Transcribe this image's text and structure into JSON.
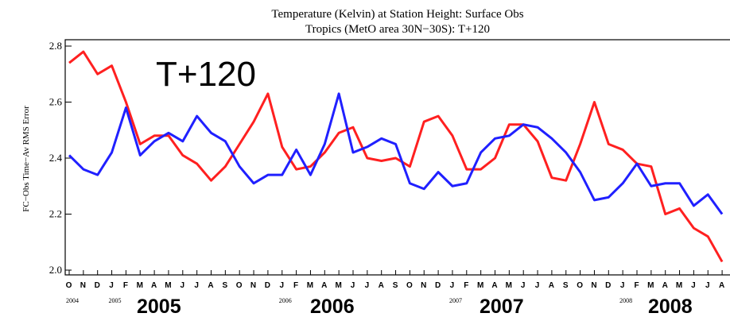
{
  "chart_data": {
    "type": "line",
    "title": "Temperature (Kelvin) at Station Height:  Surface Obs",
    "subtitle": "Tropics (MetO area 30N−30S): T+120",
    "y_label": "FC−Obs Time−Av RMS Error",
    "annotation": "T+120",
    "categories": [
      "O",
      "N",
      "D",
      "J",
      "F",
      "M",
      "A",
      "M",
      "J",
      "J",
      "A",
      "S",
      "O",
      "N",
      "D",
      "J",
      "F",
      "M",
      "A",
      "M",
      "J",
      "J",
      "A",
      "S",
      "O",
      "N",
      "D",
      "J",
      "F",
      "M",
      "A",
      "M",
      "J",
      "J",
      "A",
      "S",
      "O",
      "N",
      "D",
      "J",
      "F",
      "M",
      "A",
      "M",
      "J",
      "J",
      "A"
    ],
    "year_labels": [
      "2004",
      null,
      null,
      "2005",
      null,
      null,
      null,
      null,
      null,
      null,
      null,
      null,
      null,
      null,
      null,
      "2006",
      null,
      null,
      null,
      null,
      null,
      null,
      null,
      null,
      null,
      null,
      null,
      "2007",
      null,
      null,
      null,
      null,
      null,
      null,
      null,
      null,
      null,
      null,
      null,
      "2008",
      null,
      null,
      null,
      null,
      null,
      null,
      null
    ],
    "big_year_labels": [
      "2005",
      "2006",
      "2007",
      "2008"
    ],
    "series": [
      {
        "name": "red",
        "color": "#ff2020",
        "values": [
          2.74,
          2.78,
          2.7,
          2.73,
          2.6,
          2.45,
          2.48,
          2.48,
          2.41,
          2.38,
          2.32,
          2.37,
          2.45,
          2.53,
          2.63,
          2.44,
          2.36,
          2.37,
          2.42,
          2.49,
          2.51,
          2.4,
          2.39,
          2.4,
          2.37,
          2.53,
          2.55,
          2.48,
          2.36,
          2.36,
          2.4,
          2.52,
          2.52,
          2.46,
          2.33,
          2.32,
          2.45,
          2.6,
          2.45,
          2.43,
          2.38,
          2.37,
          2.2,
          2.22,
          2.15,
          2.12,
          2.03
        ]
      },
      {
        "name": "blue",
        "color": "#2020ff",
        "values": [
          2.41,
          2.36,
          2.34,
          2.42,
          2.58,
          2.41,
          2.46,
          2.49,
          2.46,
          2.55,
          2.49,
          2.46,
          2.37,
          2.31,
          2.34,
          2.34,
          2.43,
          2.34,
          2.45,
          2.63,
          2.42,
          2.44,
          2.47,
          2.45,
          2.31,
          2.29,
          2.35,
          2.3,
          2.31,
          2.42,
          2.47,
          2.48,
          2.52,
          2.51,
          2.47,
          2.42,
          2.35,
          2.25,
          2.26,
          2.31,
          2.38,
          2.3,
          2.31,
          2.31,
          2.23,
          2.27,
          2.2
        ]
      }
    ],
    "ylim": [
      2.0,
      2.8
    ],
    "yticks": [
      {
        "value": 2,
        "label": "2.0"
      },
      2.2,
      2.4,
      2.6,
      2.8
    ]
  }
}
